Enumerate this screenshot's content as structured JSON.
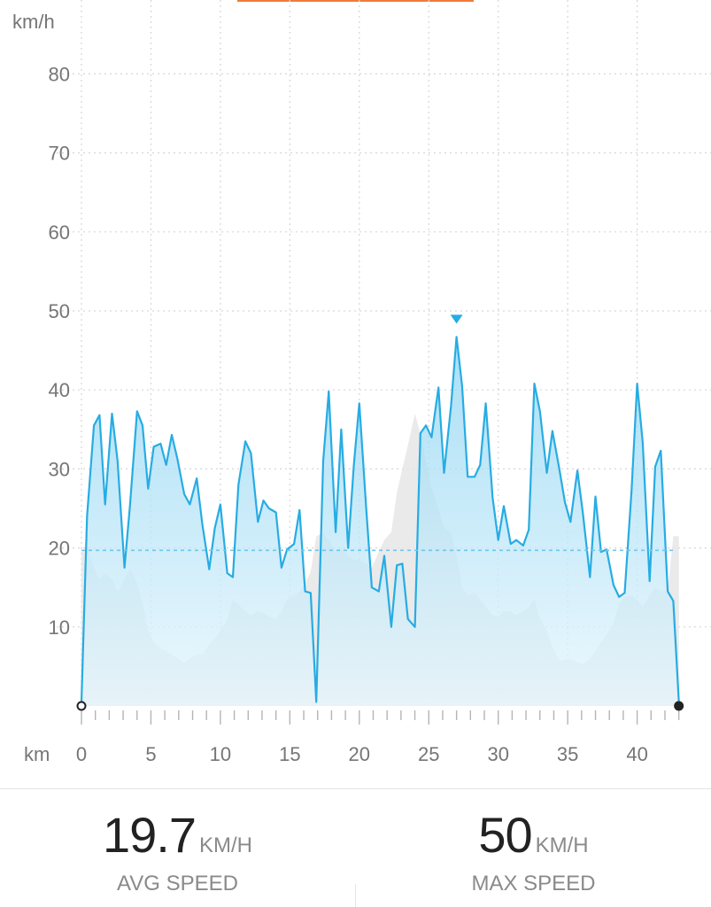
{
  "chart_data": {
    "type": "area",
    "y_unit_label": "km/h",
    "x_unit_label": "km",
    "ylim": [
      0,
      80
    ],
    "xlim": [
      0,
      43
    ],
    "y_ticks": [
      10,
      20,
      30,
      40,
      50,
      60,
      70,
      80
    ],
    "x_ticks": [
      0,
      5,
      10,
      15,
      20,
      25,
      30,
      35,
      40
    ],
    "grid": true,
    "average_line": 19.7,
    "max_marker": {
      "x": 27.0,
      "y": 46.7
    },
    "colors": {
      "speed_line": "#27ace3",
      "speed_fill": "#9fdcf4",
      "elevation_fill": "#e6e6e6",
      "avg_line": "#6fc6ec",
      "grid": "#d6d6d6",
      "top_accent": "#f07a3a"
    },
    "series": [
      {
        "role": "speed",
        "x": [
          0,
          0.4,
          0.9,
          1.3,
          1.7,
          2.2,
          2.6,
          3.1,
          3.5,
          4.0,
          4.4,
          4.8,
          5.2,
          5.7,
          6.1,
          6.5,
          6.9,
          7.4,
          7.8,
          8.3,
          8.7,
          9.2,
          9.6,
          10.0,
          10.5,
          10.9,
          11.3,
          11.8,
          12.2,
          12.7,
          13.1,
          13.5,
          14.0,
          14.4,
          14.8,
          15.3,
          15.7,
          16.1,
          16.5,
          16.9,
          17.4,
          17.8,
          18.3,
          18.7,
          19.2,
          19.6,
          20.0,
          20.5,
          20.9,
          21.4,
          21.8,
          22.3,
          22.7,
          23.1,
          23.5,
          24.0,
          24.4,
          24.8,
          25.2,
          25.7,
          26.1,
          26.6,
          27.0,
          27.4,
          27.8,
          28.3,
          28.7,
          29.1,
          29.6,
          30.0,
          30.4,
          30.9,
          31.3,
          31.8,
          32.2,
          32.6,
          33.0,
          33.5,
          33.9,
          34.4,
          34.8,
          35.2,
          35.7,
          36.1,
          36.6,
          37.0,
          37.4,
          37.8,
          38.3,
          38.7,
          39.1,
          39.6,
          40.0,
          40.4,
          40.9,
          41.3,
          41.7,
          42.2,
          42.6,
          43.0
        ],
        "values": [
          0.5,
          24,
          35.5,
          36.8,
          25.5,
          37,
          31,
          17.5,
          25.5,
          37.3,
          35.5,
          27.5,
          32.8,
          33.2,
          30.5,
          34.3,
          31.3,
          26.8,
          25.5,
          28.8,
          23,
          17.3,
          22.5,
          25.5,
          16.8,
          16.3,
          28,
          33.5,
          32,
          23.3,
          26,
          25,
          24.5,
          17.5,
          19.8,
          20.5,
          24.8,
          14.5,
          14.3,
          0.5,
          31,
          39.8,
          22,
          35,
          20,
          30.3,
          38.3,
          25,
          15,
          14.5,
          19,
          10,
          17.8,
          18,
          11,
          10,
          34.5,
          35.5,
          34,
          40.3,
          29.5,
          38,
          46.7,
          40.5,
          29,
          29,
          30.5,
          38.3,
          26.3,
          21,
          25.3,
          20.5,
          21,
          20.3,
          22.3,
          40.8,
          37.3,
          29.5,
          34.8,
          30,
          25.8,
          23.3,
          29.8,
          24.3,
          16.3,
          26.5,
          19.5,
          19.8,
          15.3,
          13.8,
          14.3,
          27.3,
          40.8,
          33.3,
          15.8,
          30.3,
          32.3,
          14.5,
          13.3,
          0.5
        ]
      },
      {
        "role": "elevation",
        "x": [
          0,
          0.4,
          0.9,
          1.3,
          1.7,
          2.2,
          2.6,
          3.1,
          3.5,
          4.0,
          4.4,
          4.8,
          5.2,
          5.7,
          6.1,
          6.5,
          6.9,
          7.4,
          7.8,
          8.3,
          8.7,
          9.2,
          9.6,
          10.0,
          10.5,
          10.9,
          11.3,
          11.8,
          12.2,
          12.7,
          13.1,
          13.5,
          14.0,
          14.4,
          14.8,
          15.3,
          15.7,
          16.1,
          16.5,
          16.9,
          17.4,
          17.8,
          18.3,
          18.7,
          19.2,
          19.6,
          20.0,
          20.5,
          20.9,
          21.4,
          21.8,
          22.3,
          22.7,
          23.1,
          23.5,
          24.0,
          24.4,
          24.8,
          25.2,
          25.7,
          26.1,
          26.6,
          27.0,
          27.4,
          27.8,
          28.3,
          28.7,
          29.1,
          29.6,
          30.0,
          30.4,
          30.9,
          31.3,
          31.8,
          32.2,
          32.6,
          33.0,
          33.5,
          33.9,
          34.4,
          34.8,
          35.2,
          35.7,
          36.1,
          36.6,
          37.0,
          37.4,
          37.8,
          38.3,
          38.7,
          39.1,
          39.6,
          40.0,
          40.4,
          40.9,
          41.3,
          41.7,
          42.2,
          42.6,
          43.0
        ],
        "values": [
          19.5,
          20,
          17.5,
          16,
          16.8,
          16,
          14.5,
          16,
          17.3,
          15.5,
          13,
          9.5,
          8,
          7.3,
          7,
          6.5,
          6,
          5.5,
          6,
          6.5,
          6.5,
          7.8,
          8.5,
          9.5,
          11,
          13.5,
          12.8,
          12,
          11.5,
          12,
          11.8,
          11.3,
          11,
          12,
          13.5,
          14,
          14.5,
          15.5,
          17,
          21.5,
          21.8,
          21,
          19.5,
          20,
          19,
          18.5,
          18.5,
          18,
          17.5,
          19.5,
          21,
          22,
          27,
          30,
          33,
          37,
          34.5,
          31,
          27.5,
          25,
          22.5,
          22,
          19,
          15,
          14,
          14.3,
          13.5,
          12.5,
          11.5,
          11.3,
          12,
          12,
          11.5,
          12,
          12.5,
          13.5,
          11,
          9.5,
          7.5,
          5.8,
          5.8,
          6,
          5.5,
          5.3,
          6,
          7,
          8,
          9,
          10.5,
          13,
          13.8,
          14,
          13.5,
          12.5,
          14,
          15,
          14.5,
          14.5,
          21.5,
          21.5
        ]
      }
    ]
  },
  "stats": {
    "avg": {
      "value": "19.7",
      "unit": "KM/H",
      "label": "AVG SPEED"
    },
    "max": {
      "value": "50",
      "unit": "KM/H",
      "label": "MAX SPEED"
    }
  }
}
